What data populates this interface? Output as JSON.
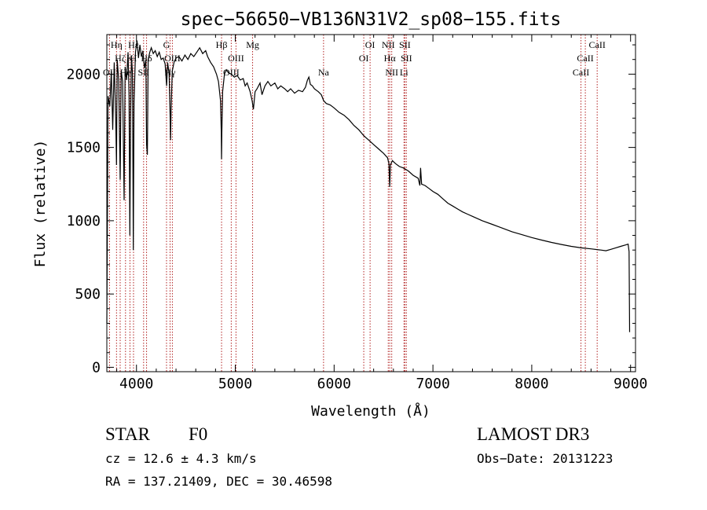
{
  "chart_data": {
    "type": "line",
    "title": "spec−56650−VB136N31V2_sp08−155.fits",
    "xlabel": "Wavelength (Å)",
    "ylabel": "Flux (relative)",
    "xlim": [
      3700,
      9050
    ],
    "ylim": [
      -30,
      2270
    ],
    "x_ticks": [
      4000,
      5000,
      6000,
      7000,
      8000,
      9000
    ],
    "y_ticks": [
      0,
      500,
      1000,
      1500,
      2000
    ],
    "series": [
      {
        "name": "spectrum",
        "points": [
          [
            3700,
            300
          ],
          [
            3712,
            1850
          ],
          [
            3730,
            1780
          ],
          [
            3745,
            2020
          ],
          [
            3760,
            1620
          ],
          [
            3775,
            2080
          ],
          [
            3790,
            1700
          ],
          [
            3798,
            1380
          ],
          [
            3805,
            2100
          ],
          [
            3820,
            1960
          ],
          [
            3835,
            1280
          ],
          [
            3845,
            2020
          ],
          [
            3860,
            1950
          ],
          [
            3875,
            1140
          ],
          [
            3885,
            2050
          ],
          [
            3900,
            1960
          ],
          [
            3915,
            2150
          ],
          [
            3925,
            1850
          ],
          [
            3933,
            900
          ],
          [
            3940,
            1700
          ],
          [
            3950,
            2120
          ],
          [
            3960,
            2000
          ],
          [
            3968,
            800
          ],
          [
            3975,
            1800
          ],
          [
            3990,
            2150
          ],
          [
            4005,
            2230
          ],
          [
            4020,
            2110
          ],
          [
            4035,
            2200
          ],
          [
            4050,
            2120
          ],
          [
            4065,
            2160
          ],
          [
            4080,
            2040
          ],
          [
            4095,
            2100
          ],
          [
            4102,
            1520
          ],
          [
            4110,
            1450
          ],
          [
            4118,
            2100
          ],
          [
            4135,
            2150
          ],
          [
            4150,
            2180
          ],
          [
            4170,
            2140
          ],
          [
            4190,
            2160
          ],
          [
            4210,
            2120
          ],
          [
            4230,
            2150
          ],
          [
            4250,
            2100
          ],
          [
            4270,
            2110
          ],
          [
            4290,
            2070
          ],
          [
            4305,
            1920
          ],
          [
            4315,
            2080
          ],
          [
            4330,
            2000
          ],
          [
            4340,
            1730
          ],
          [
            4345,
            1550
          ],
          [
            4350,
            1760
          ],
          [
            4362,
            2020
          ],
          [
            4380,
            2080
          ],
          [
            4400,
            2110
          ],
          [
            4430,
            2120
          ],
          [
            4460,
            2090
          ],
          [
            4490,
            2130
          ],
          [
            4520,
            2100
          ],
          [
            4550,
            2140
          ],
          [
            4580,
            2120
          ],
          [
            4610,
            2150
          ],
          [
            4640,
            2180
          ],
          [
            4670,
            2140
          ],
          [
            4700,
            2160
          ],
          [
            4720,
            2120
          ],
          [
            4750,
            2080
          ],
          [
            4780,
            2050
          ],
          [
            4810,
            2000
          ],
          [
            4830,
            1950
          ],
          [
            4850,
            1820
          ],
          [
            4858,
            1600
          ],
          [
            4861,
            1420
          ],
          [
            4864,
            1600
          ],
          [
            4872,
            1880
          ],
          [
            4890,
            2000
          ],
          [
            4910,
            2030
          ],
          [
            4930,
            2010
          ],
          [
            4960,
            2000
          ],
          [
            4990,
            1980
          ],
          [
            5020,
            1990
          ],
          [
            5050,
            1960
          ],
          [
            5080,
            1970
          ],
          [
            5100,
            1920
          ],
          [
            5120,
            1940
          ],
          [
            5150,
            1880
          ],
          [
            5170,
            1820
          ],
          [
            5183,
            1760
          ],
          [
            5200,
            1880
          ],
          [
            5220,
            1900
          ],
          [
            5250,
            1940
          ],
          [
            5270,
            1860
          ],
          [
            5300,
            1920
          ],
          [
            5330,
            1950
          ],
          [
            5360,
            1920
          ],
          [
            5400,
            1940
          ],
          [
            5430,
            1900
          ],
          [
            5460,
            1920
          ],
          [
            5500,
            1900
          ],
          [
            5530,
            1880
          ],
          [
            5560,
            1900
          ],
          [
            5600,
            1870
          ],
          [
            5640,
            1890
          ],
          [
            5680,
            1880
          ],
          [
            5710,
            1910
          ],
          [
            5730,
            1960
          ],
          [
            5745,
            1980
          ],
          [
            5760,
            1930
          ],
          [
            5780,
            1920
          ],
          [
            5800,
            1900
          ],
          [
            5840,
            1880
          ],
          [
            5870,
            1860
          ],
          [
            5893,
            1820
          ],
          [
            5920,
            1800
          ],
          [
            5960,
            1790
          ],
          [
            6000,
            1770
          ],
          [
            6050,
            1740
          ],
          [
            6100,
            1720
          ],
          [
            6150,
            1690
          ],
          [
            6200,
            1650
          ],
          [
            6250,
            1620
          ],
          [
            6300,
            1580
          ],
          [
            6350,
            1550
          ],
          [
            6400,
            1520
          ],
          [
            6450,
            1490
          ],
          [
            6500,
            1460
          ],
          [
            6540,
            1430
          ],
          [
            6555,
            1390
          ],
          [
            6563,
            1230
          ],
          [
            6570,
            1380
          ],
          [
            6590,
            1410
          ],
          [
            6620,
            1390
          ],
          [
            6660,
            1370
          ],
          [
            6700,
            1360
          ],
          [
            6750,
            1340
          ],
          [
            6800,
            1310
          ],
          [
            6850,
            1290
          ],
          [
            6868,
            1240
          ],
          [
            6875,
            1360
          ],
          [
            6885,
            1250
          ],
          [
            6920,
            1240
          ],
          [
            6960,
            1220
          ],
          [
            7000,
            1200
          ],
          [
            7050,
            1180
          ],
          [
            7100,
            1150
          ],
          [
            7150,
            1120
          ],
          [
            7200,
            1100
          ],
          [
            7250,
            1080
          ],
          [
            7300,
            1060
          ],
          [
            7350,
            1045
          ],
          [
            7400,
            1030
          ],
          [
            7500,
            1000
          ],
          [
            7600,
            975
          ],
          [
            7700,
            950
          ],
          [
            7800,
            925
          ],
          [
            7900,
            905
          ],
          [
            8000,
            885
          ],
          [
            8100,
            868
          ],
          [
            8200,
            852
          ],
          [
            8300,
            838
          ],
          [
            8400,
            825
          ],
          [
            8500,
            815
          ],
          [
            8600,
            808
          ],
          [
            8700,
            800
          ],
          [
            8750,
            795
          ],
          [
            8800,
            805
          ],
          [
            8850,
            815
          ],
          [
            8900,
            825
          ],
          [
            8950,
            835
          ],
          [
            8975,
            840
          ],
          [
            8985,
            790
          ],
          [
            8990,
            240
          ]
        ]
      }
    ],
    "lines": [
      {
        "wavelength": 3727,
        "labels": [
          "OII"
        ],
        "label_rows": [
          3
        ]
      },
      {
        "wavelength": 3798,
        "labels": [
          "Hη"
        ],
        "label_rows": [
          1
        ]
      },
      {
        "wavelength": 3835,
        "labels": [
          "Hζ"
        ],
        "label_rows": [
          2
        ]
      },
      {
        "wavelength": 3889,
        "labels": [
          "He"
        ],
        "label_rows": [
          3
        ]
      },
      {
        "wavelength": 3934,
        "labels": [
          "K"
        ],
        "label_rows": [
          2
        ]
      },
      {
        "wavelength": 3970,
        "labels": [
          "Hε",
          "H"
        ],
        "label_rows": [
          1,
          2
        ]
      },
      {
        "wavelength": 4072,
        "labels": [
          "SII"
        ],
        "label_rows": [
          3
        ]
      },
      {
        "wavelength": 4102,
        "labels": [
          "Hδ"
        ],
        "label_rows": [
          2
        ]
      },
      {
        "wavelength": 4304,
        "labels": [
          "G"
        ],
        "label_rows": [
          1
        ]
      },
      {
        "wavelength": 4340,
        "labels": [
          "Hγ"
        ],
        "label_rows": [
          3
        ]
      },
      {
        "wavelength": 4363,
        "labels": [
          "OIII"
        ],
        "label_rows": [
          2
        ]
      },
      {
        "wavelength": 4861,
        "labels": [
          "Hβ"
        ],
        "label_rows": [
          1
        ]
      },
      {
        "wavelength": 4959,
        "labels": [
          "OIII"
        ],
        "label_rows": [
          3
        ]
      },
      {
        "wavelength": 5007,
        "labels": [
          "OIII"
        ],
        "label_rows": [
          2
        ]
      },
      {
        "wavelength": 5175,
        "labels": [
          "Mg"
        ],
        "label_rows": [
          1
        ]
      },
      {
        "wavelength": 5893,
        "labels": [
          "Na"
        ],
        "label_rows": [
          3
        ]
      },
      {
        "wavelength": 6300,
        "labels": [
          "OI"
        ],
        "label_rows": [
          2
        ]
      },
      {
        "wavelength": 6364,
        "labels": [
          "OI"
        ],
        "label_rows": [
          1
        ]
      },
      {
        "wavelength": 6548,
        "labels": [
          "NII"
        ],
        "label_rows": [
          1
        ]
      },
      {
        "wavelength": 6563,
        "labels": [
          "Hα"
        ],
        "label_rows": [
          2
        ]
      },
      {
        "wavelength": 6583,
        "labels": [
          "NII"
        ],
        "label_rows": [
          3
        ]
      },
      {
        "wavelength": 6707,
        "labels": [
          "Li"
        ],
        "label_rows": [
          3
        ]
      },
      {
        "wavelength": 6716,
        "labels": [
          "SII"
        ],
        "label_rows": [
          1
        ]
      },
      {
        "wavelength": 6731,
        "labels": [
          "SII"
        ],
        "label_rows": [
          2
        ]
      },
      {
        "wavelength": 8498,
        "labels": [
          "CaII"
        ],
        "label_rows": [
          3
        ]
      },
      {
        "wavelength": 8542,
        "labels": [
          "CaII"
        ],
        "label_rows": [
          2
        ]
      },
      {
        "wavelength": 8662,
        "labels": [
          "CaII"
        ],
        "label_rows": [
          1
        ]
      }
    ],
    "colors": {
      "spectrum": "#000000",
      "lines": "#b22222",
      "axes": "#000000"
    }
  },
  "info": {
    "class": "STAR",
    "subclass": "F0",
    "cz": "cz = 12.6 ± 4.3 km/s",
    "coords": "RA = 137.21409, DEC =  30.46598",
    "survey": "LAMOST DR3",
    "obs_date": "Obs−Date: 20131223"
  }
}
